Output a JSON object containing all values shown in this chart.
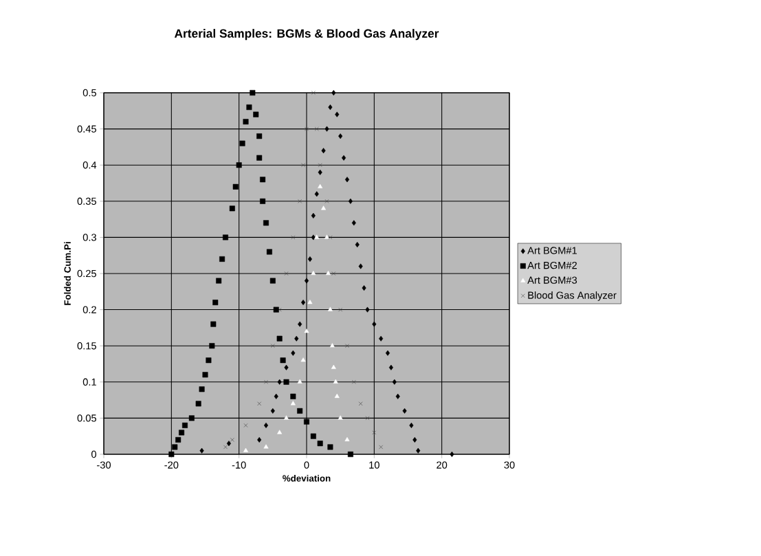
{
  "chart_data": {
    "type": "scatter",
    "title": "Arterial Samples: BGMs & Blood Gas Analyzer",
    "xlabel": "%deviation",
    "ylabel": "Folded Cum.Pi",
    "xlim": [
      -30,
      30
    ],
    "ylim": [
      0,
      0.5
    ],
    "xticks": [
      -30,
      -20,
      -10,
      0,
      10,
      20,
      30
    ],
    "yticks": [
      0,
      0.05,
      0.1,
      0.15,
      0.2,
      0.25,
      0.3,
      0.35,
      0.4,
      0.45,
      0.5
    ],
    "grid": true,
    "legend": "right",
    "series": [
      {
        "name": "Art BGM#1",
        "color": "#000000",
        "marker": "diamond",
        "x": [
          -15.5,
          -11.5,
          -7,
          -6,
          -5,
          -4.5,
          -4,
          -3,
          -2,
          -1.5,
          -1,
          -0.5,
          0,
          0.5,
          1,
          1,
          1.5,
          2,
          2.5,
          3,
          3.5,
          4,
          4.5,
          5,
          5.5,
          6,
          6.5,
          7,
          7.5,
          8,
          8.5,
          9,
          10,
          11,
          12,
          12.5,
          13,
          13.5,
          14.5,
          15.5,
          16,
          16.5,
          21.5
        ],
        "values": [
          0.005,
          0.015,
          0.02,
          0.04,
          0.06,
          0.08,
          0.1,
          0.12,
          0.14,
          0.16,
          0.18,
          0.21,
          0.24,
          0.27,
          0.3,
          0.33,
          0.36,
          0.39,
          0.42,
          0.45,
          0.48,
          0.5,
          0.47,
          0.44,
          0.41,
          0.38,
          0.35,
          0.32,
          0.29,
          0.26,
          0.23,
          0.2,
          0.18,
          0.16,
          0.14,
          0.12,
          0.1,
          0.08,
          0.06,
          0.04,
          0.02,
          0.005,
          0
        ]
      },
      {
        "name": "Art BGM#2",
        "color": "#000000",
        "marker": "square",
        "x": [
          -20,
          -19.5,
          -19,
          -18.5,
          -18,
          -17,
          -16,
          -15.5,
          -15,
          -14.5,
          -14,
          -13.8,
          -13.5,
          -13,
          -12.5,
          -12,
          -11,
          -10.5,
          -10,
          -9.5,
          -9,
          -8.5,
          -8,
          -7.5,
          -7,
          -7,
          -6.5,
          -6.5,
          -6,
          -5.5,
          -5,
          -4.5,
          -4,
          -3.5,
          -3,
          -2,
          -1,
          0,
          1,
          2,
          3.5,
          6.5
        ],
        "values": [
          0,
          0.01,
          0.02,
          0.03,
          0.04,
          0.05,
          0.07,
          0.09,
          0.11,
          0.13,
          0.15,
          0.18,
          0.21,
          0.24,
          0.27,
          0.3,
          0.34,
          0.37,
          0.4,
          0.43,
          0.46,
          0.48,
          0.5,
          0.47,
          0.44,
          0.41,
          0.38,
          0.35,
          0.32,
          0.28,
          0.24,
          0.2,
          0.16,
          0.13,
          0.1,
          0.08,
          0.06,
          0.045,
          0.025,
          0.015,
          0.01,
          0
        ]
      },
      {
        "name": "Art BGM#3",
        "color": "#ffffff",
        "marker": "triangle",
        "x": [
          -9,
          -6,
          -4,
          -3,
          -2,
          -1,
          -0.5,
          0,
          0.5,
          1,
          1.5,
          2,
          2.5,
          3,
          3.2,
          3.5,
          3.8,
          4,
          4.3,
          4.5,
          5,
          6
        ],
        "values": [
          0.005,
          0.01,
          0.03,
          0.05,
          0.07,
          0.1,
          0.13,
          0.17,
          0.21,
          0.25,
          0.3,
          0.37,
          0.34,
          0.3,
          0.25,
          0.2,
          0.15,
          0.12,
          0.1,
          0.08,
          0.05,
          0.02
        ]
      },
      {
        "name": "Blood Gas Analyzer",
        "color": "#333333",
        "marker": "cross",
        "x": [
          -12,
          -11,
          -9,
          -7,
          -6,
          -5,
          -4,
          -3,
          -2,
          -1,
          -0.5,
          0,
          1,
          1.5,
          2,
          3,
          3.5,
          4,
          5,
          6,
          7,
          8,
          9,
          10,
          11
        ],
        "values": [
          0.01,
          0.02,
          0.04,
          0.07,
          0.1,
          0.15,
          0.2,
          0.25,
          0.3,
          0.35,
          0.4,
          0.45,
          0.5,
          0.45,
          0.4,
          0.35,
          0.3,
          0.25,
          0.2,
          0.15,
          0.1,
          0.07,
          0.05,
          0.03,
          0.01
        ]
      }
    ]
  }
}
